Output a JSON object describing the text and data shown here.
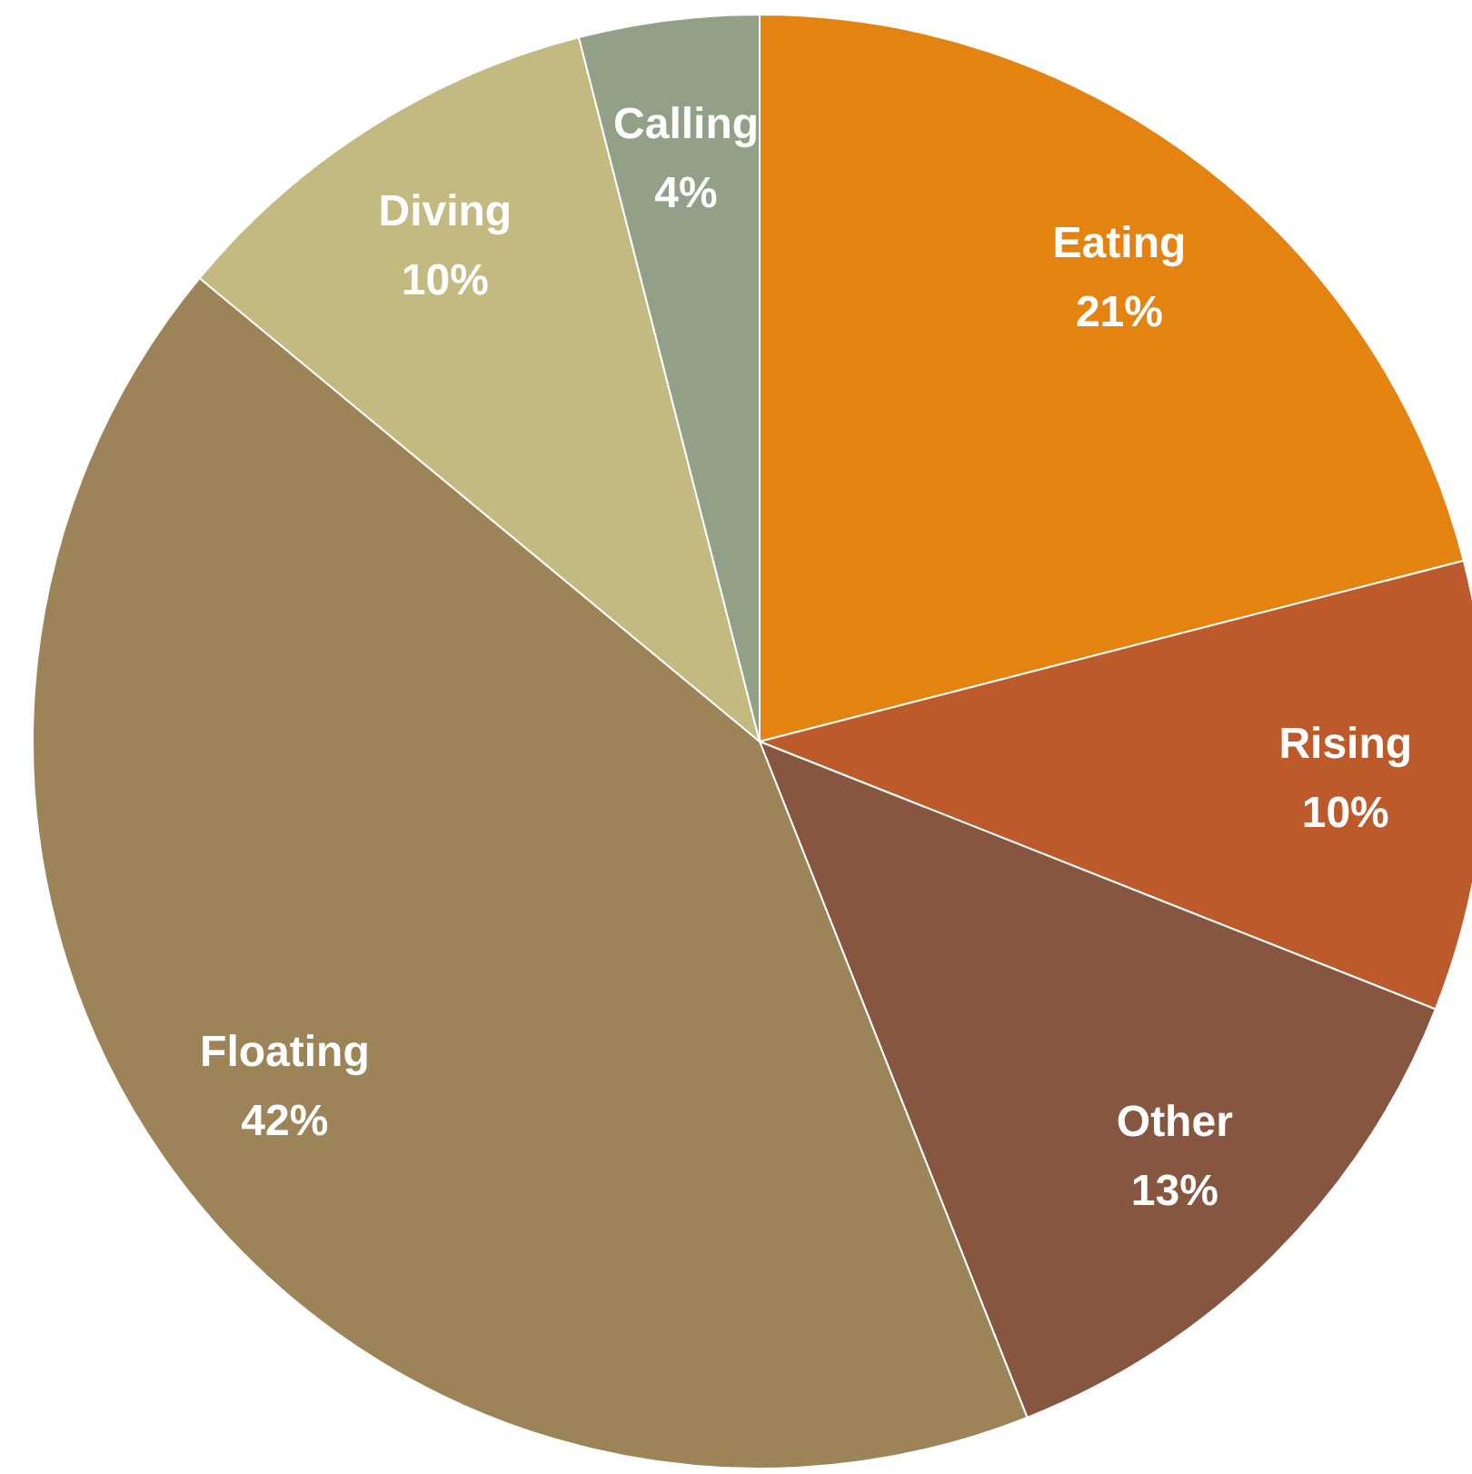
{
  "chart_data": {
    "type": "pie",
    "categories": [
      "Eating",
      "Rising",
      "Other",
      "Floating",
      "Diving",
      "Calling"
    ],
    "values": [
      21,
      10,
      13,
      42,
      10,
      4
    ],
    "colors": [
      "#e58311",
      "#bd5a2b",
      "#865641",
      "#9c8458",
      "#c2ba80",
      "#93a088"
    ],
    "value_labels": [
      "21%",
      "10%",
      "13%",
      "42%",
      "10%",
      "4%"
    ],
    "legend": false
  }
}
